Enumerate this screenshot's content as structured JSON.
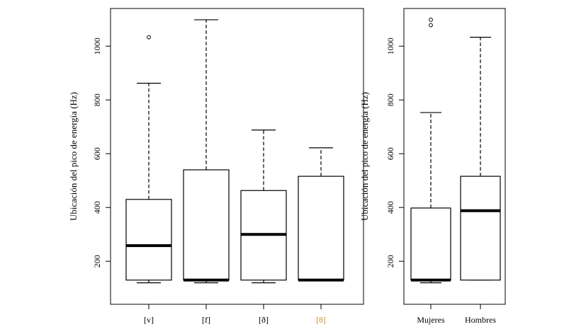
{
  "chart_data": [
    {
      "type": "boxplot",
      "ylabel": "Ubicación del pico de energía (Hz)",
      "ylim": [
        40,
        1140
      ],
      "yticks": [
        200,
        400,
        600,
        800,
        1000
      ],
      "categories": [
        "[v]",
        "[f]",
        "[ð]",
        "[θ]"
      ],
      "category_colors": [
        "#000000",
        "#000000",
        "#000000",
        "#d98a3a"
      ],
      "boxes": [
        {
          "label": "[v]",
          "whisker_low": 120,
          "q1": 130,
          "median": 258,
          "q3": 430,
          "whisker_high": 862,
          "outliers": [
            1033
          ]
        },
        {
          "label": "[f]",
          "whisker_low": 120,
          "q1": 130,
          "median": 130,
          "q3": 540,
          "whisker_high": 1098,
          "outliers": []
        },
        {
          "label": "[ð]",
          "whisker_low": 120,
          "q1": 130,
          "median": 300,
          "q3": 463,
          "whisker_high": 688,
          "outliers": []
        },
        {
          "label": "[θ]",
          "whisker_low": 130,
          "q1": 130,
          "median": 130,
          "q3": 516,
          "whisker_high": 622,
          "outliers": []
        }
      ]
    },
    {
      "type": "boxplot",
      "ylabel": "Ubicación del pico de energía (Hz)",
      "ylim": [
        40,
        1140
      ],
      "yticks": [
        200,
        400,
        600,
        800,
        1000
      ],
      "categories": [
        "Mujeres",
        "Hombres"
      ],
      "category_colors": [
        "#000000",
        "#000000"
      ],
      "boxes": [
        {
          "label": "Mujeres",
          "whisker_low": 120,
          "q1": 130,
          "median": 130,
          "q3": 398,
          "whisker_high": 753,
          "outliers": [
            1078,
            1098
          ]
        },
        {
          "label": "Hombres",
          "whisker_low": 130,
          "q1": 130,
          "median": 388,
          "q3": 516,
          "whisker_high": 1033,
          "outliers": []
        }
      ]
    }
  ]
}
